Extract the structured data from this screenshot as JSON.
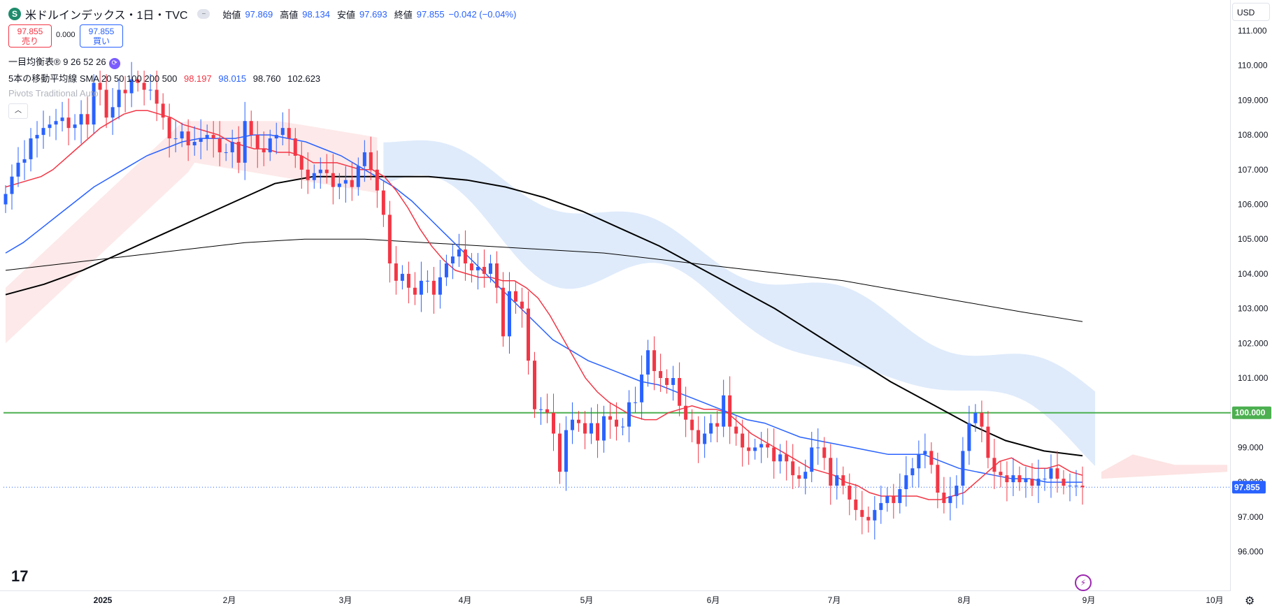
{
  "header": {
    "symbol_icon": "S",
    "title": "米ドルインデックス・1日・TVC",
    "open_label": "始値",
    "open": "97.869",
    "high_label": "高値",
    "high": "98.134",
    "low_label": "安値",
    "low": "97.693",
    "close_label": "終値",
    "close": "97.855",
    "change": "−0.042 (−0.04%)"
  },
  "trade": {
    "sell_price": "97.855",
    "sell_label": "売り",
    "spread": "0.000",
    "buy_price": "97.855",
    "buy_label": "買い"
  },
  "indicators": {
    "ichimoku": "一目均衡表® 9 26 52 26",
    "sma_label": "5本の移動平均線 SMA 20 50 100 200 500",
    "sma20": "98.197",
    "sma50": "98.015",
    "sma100": "98.760",
    "sma200": "102.623",
    "pivots": "Pivots Traditional Auto"
  },
  "currency": "USD",
  "chart_data": {
    "type": "candlestick",
    "y_axis": {
      "ticks": [
        "111.000",
        "110.000",
        "109.000",
        "108.000",
        "107.000",
        "106.000",
        "105.000",
        "104.000",
        "103.000",
        "102.000",
        "101.000",
        "100.000",
        "99.000",
        "98.000",
        "97.000",
        "96.000"
      ],
      "range": [
        95.5,
        111.5
      ]
    },
    "x_axis": {
      "ticks": [
        "2025",
        "2月",
        "3月",
        "4月",
        "5月",
        "6月",
        "7月",
        "8月",
        "9月",
        "10月"
      ]
    },
    "horizontal_line": {
      "value": 100.0,
      "label": "100.000",
      "color": "#4caf50"
    },
    "last_price": {
      "value": 97.855,
      "label": "97.855",
      "color": "#2962ff"
    },
    "colors": {
      "up": "#2962ff",
      "down": "#f23645",
      "sma20": "#f23645",
      "sma50": "#2962ff",
      "sma100": "#000000",
      "sma200": "#000000",
      "cloud_bull": "#dce9fb",
      "cloud_bear": "#fde3e3"
    },
    "close_series": [
      106.3,
      106.8,
      107.2,
      107.3,
      107.9,
      108.0,
      108.2,
      108.3,
      108.4,
      108.5,
      108.2,
      108.3,
      108.6,
      108.3,
      109.5,
      109.3,
      108.5,
      108.8,
      109.3,
      109.2,
      109.6,
      109.5,
      109.3,
      109.3,
      108.9,
      108.5,
      107.9,
      107.9,
      108.1,
      107.7,
      107.8,
      107.9,
      108.0,
      107.9,
      107.5,
      107.5,
      107.8,
      107.2,
      108.4,
      108.0,
      107.6,
      107.5,
      107.9,
      108.0,
      108.2,
      107.9,
      107.4,
      107.0,
      106.7,
      106.9,
      107.0,
      106.9,
      106.5,
      106.6,
      106.7,
      106.5,
      107.1,
      107.5,
      107.0,
      106.4,
      105.7,
      104.3,
      103.8,
      104.0,
      103.6,
      103.4,
      103.8,
      103.8,
      103.4,
      103.9,
      104.3,
      104.5,
      104.7,
      104.3,
      104.1,
      104.2,
      104.0,
      104.3,
      103.6,
      102.2,
      103.5,
      103.2,
      103.0,
      101.5,
      100.1,
      100.1,
      100.0,
      99.4,
      98.3,
      99.5,
      99.8,
      99.7,
      99.4,
      99.7,
      99.2,
      99.9,
      99.8,
      99.6,
      99.6,
      100.3,
      100.3,
      101.1,
      101.8,
      101.2,
      101.0,
      100.8,
      101.0,
      100.2,
      99.8,
      99.5,
      99.1,
      99.4,
      99.7,
      99.6,
      100.5,
      99.6,
      99.4,
      99.0,
      98.9,
      99.0,
      99.1,
      99.0,
      98.6,
      98.8,
      98.6,
      98.2,
      98.1,
      98.3,
      99.0,
      99.0,
      98.7,
      97.9,
      98.2,
      97.9,
      97.5,
      97.2,
      97.0,
      96.9,
      97.2,
      97.4,
      97.6,
      97.4,
      97.8,
      98.2,
      98.4,
      98.8,
      98.9,
      98.5,
      97.7,
      97.4,
      97.6,
      97.9,
      98.9,
      99.7,
      100.0,
      99.6,
      98.7,
      98.3,
      98.2,
      98.0,
      98.2,
      98.0,
      98.1,
      97.9,
      98.1,
      98.1,
      98.4,
      98.1,
      97.9,
      97.9,
      97.9,
      97.855
    ],
    "sma20_series": [
      106.5,
      106.6,
      106.7,
      106.8,
      107.0,
      107.3,
      107.6,
      107.9,
      108.2,
      108.4,
      108.6,
      108.7,
      108.7,
      108.6,
      108.5,
      108.3,
      108.2,
      108.1,
      108.0,
      107.8,
      107.7,
      107.6,
      107.6,
      107.5,
      107.5,
      107.4,
      107.2,
      107.2,
      107.2,
      107.1,
      107.0,
      107.0,
      106.8,
      106.4,
      105.9,
      105.3,
      104.8,
      104.4,
      104.1,
      104.0,
      103.9,
      103.9,
      103.8,
      103.8,
      103.6,
      103.3,
      102.8,
      102.2,
      101.6,
      101.0,
      100.6,
      100.3,
      100.1,
      99.9,
      99.8,
      99.8,
      100.0,
      100.1,
      100.2,
      100.1,
      100.1,
      100.0,
      99.7,
      99.4,
      99.2,
      99.0,
      98.8,
      98.6,
      98.4,
      98.3,
      98.2,
      98.0,
      97.9,
      97.7,
      97.6,
      97.6,
      97.6,
      97.6,
      97.5,
      97.5,
      97.6,
      97.7,
      98.0,
      98.3,
      98.6,
      98.7,
      98.5,
      98.4,
      98.4,
      98.5,
      98.3,
      98.2
    ],
    "sma50_series": [
      104.6,
      104.9,
      105.3,
      105.7,
      106.1,
      106.5,
      106.8,
      107.1,
      107.4,
      107.6,
      107.8,
      107.9,
      107.9,
      107.9,
      108.0,
      108.0,
      107.9,
      107.8,
      107.6,
      107.4,
      107.1,
      106.8,
      106.5,
      106.1,
      105.6,
      105.1,
      104.6,
      104.1,
      103.6,
      103.1,
      102.6,
      102.1,
      101.8,
      101.5,
      101.3,
      101.1,
      100.9,
      100.8,
      100.6,
      100.4,
      100.2,
      100.0,
      99.8,
      99.7,
      99.5,
      99.3,
      99.2,
      99.1,
      99.0,
      98.9,
      98.8,
      98.8,
      98.8,
      98.6,
      98.4,
      98.3,
      98.2,
      98.1,
      98.1,
      98.0,
      98.0,
      98.0
    ],
    "sma100_series": [
      103.4,
      103.7,
      104.1,
      104.6,
      105.1,
      105.6,
      106.1,
      106.6,
      106.8,
      106.8,
      106.8,
      106.8,
      106.7,
      106.5,
      106.2,
      105.8,
      105.3,
      104.8,
      104.2,
      103.6,
      103.0,
      102.3,
      101.6,
      100.9,
      100.3,
      99.7,
      99.2,
      98.9,
      98.76
    ],
    "sma200_series": [
      104.1,
      104.3,
      104.5,
      104.7,
      104.9,
      105.0,
      105.0,
      104.9,
      104.8,
      104.7,
      104.6,
      104.4,
      104.2,
      104.0,
      103.8,
      103.5,
      103.2,
      102.9,
      102.623
    ]
  }
}
